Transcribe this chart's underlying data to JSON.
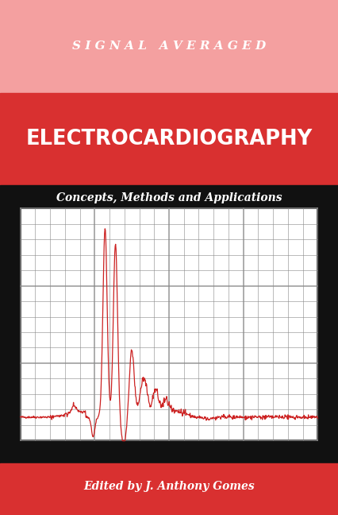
{
  "bg_top_color": "#f4a0a0",
  "bg_red_band_color": "#d93030",
  "bg_black_color": "#111111",
  "bg_bottom_color": "#d93030",
  "title_line1": "S I G N A L   A V E R A G E D",
  "title_line2": "ELECTROCARDIOGRAPHY",
  "subtitle": "Concepts, Methods and Applications",
  "author": "Edited by J. Anthony Gomes",
  "title1_color": "#ffffff",
  "title2_color": "#ffffff",
  "subtitle_color": "#ffffff",
  "author_color": "#ffffff",
  "grid_color": "#888888",
  "ecg_color": "#cc2222",
  "chart_bg": "#ffffff",
  "chart_border": "#333333",
  "fig_width": 4.26,
  "fig_height": 6.48,
  "dpi": 100
}
